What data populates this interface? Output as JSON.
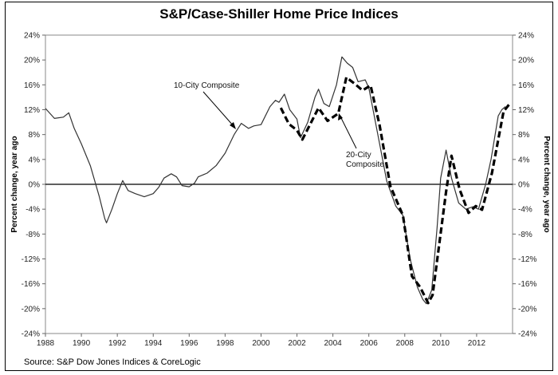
{
  "chart_data": {
    "type": "line",
    "title": "S&P/Case-Shiller Home Price Indices",
    "ylabel": "Percent change, year ago",
    "ylabel_right": "Percent change, year ago",
    "source": "Source: S&P Dow Jones Indices & CoreLogic",
    "xlim": [
      1988,
      2014
    ],
    "ylim": [
      -24,
      24
    ],
    "x_ticks": [
      "1988",
      "1990",
      "1992",
      "1994",
      "1996",
      "1998",
      "2000",
      "2002",
      "2004",
      "2006",
      "2008",
      "2010",
      "2012"
    ],
    "y_ticks": [
      "24%",
      "20%",
      "16%",
      "12%",
      "8%",
      "4%",
      "0%",
      "-4%",
      "-8%",
      "-12%",
      "-16%",
      "-20%",
      "-24%"
    ],
    "grid": false,
    "legend": "none (inline annotations)",
    "annotations": [
      {
        "text": "10-City Composite",
        "series": "10-City Composite"
      },
      {
        "text_lines": [
          "20-City",
          "Composite"
        ],
        "series": "20-City Composite"
      }
    ],
    "series": [
      {
        "name": "10-City Composite",
        "style": "solid",
        "color": "#333333",
        "x": [
          1988.0,
          1988.5,
          1989.0,
          1989.3,
          1989.6,
          1990.0,
          1990.5,
          1991.0,
          1991.3,
          1991.4,
          1991.7,
          1992.0,
          1992.3,
          1992.6,
          1993.0,
          1993.5,
          1994.0,
          1994.3,
          1994.6,
          1995.0,
          1995.3,
          1995.6,
          1996.0,
          1996.3,
          1996.5,
          1997.0,
          1997.5,
          1998.0,
          1998.5,
          1998.9,
          1999.3,
          1999.6,
          2000.0,
          2000.5,
          2000.8,
          2001.0,
          2001.3,
          2001.6,
          2002.0,
          2002.2,
          2002.6,
          2003.0,
          2003.2,
          2003.5,
          2003.8,
          2004.2,
          2004.5,
          2004.8,
          2005.1,
          2005.4,
          2005.8,
          2006.0,
          2006.5,
          2007.0,
          2007.5,
          2007.9,
          2008.3,
          2008.7,
          2009.0,
          2009.2,
          2009.5,
          2009.8,
          2010.0,
          2010.3,
          2010.6,
          2011.0,
          2011.4,
          2011.8,
          2012.1,
          2012.5,
          2012.8,
          2013.2,
          2013.4,
          2013.6
        ],
        "y": [
          12.2,
          10.6,
          10.8,
          11.5,
          9.0,
          6.5,
          3.0,
          -2.0,
          -5.5,
          -6.2,
          -4.0,
          -1.5,
          0.6,
          -1.0,
          -1.5,
          -2.0,
          -1.5,
          -0.5,
          1.0,
          1.7,
          1.2,
          -0.2,
          -0.4,
          0.2,
          1.2,
          1.8,
          3.0,
          5.0,
          8.0,
          9.8,
          9.0,
          9.4,
          9.6,
          12.5,
          13.5,
          13.2,
          14.5,
          12.0,
          10.5,
          7.5,
          10.0,
          14.0,
          15.3,
          13.0,
          12.5,
          16.0,
          20.5,
          19.5,
          18.8,
          16.5,
          16.8,
          15.5,
          8.0,
          0.5,
          -3.5,
          -5.0,
          -12.0,
          -16.5,
          -18.5,
          -19.2,
          -17.0,
          -7.0,
          1.0,
          5.5,
          1.0,
          -3.0,
          -4.0,
          -3.6,
          -4.0,
          0.0,
          4.0,
          11.0,
          12.0,
          12.5
        ]
      },
      {
        "name": "20-City Composite",
        "style": "dashed",
        "color": "#000000",
        "x": [
          2001.1,
          2001.55,
          2002.0,
          2002.3,
          2003.2,
          2003.7,
          2004.3,
          2004.75,
          2005.2,
          2005.65,
          2006.1,
          2006.6,
          2007.2,
          2007.9,
          2008.4,
          2008.85,
          2009.3,
          2009.55,
          2010.3,
          2010.6,
          2011.05,
          2011.55,
          2011.95,
          2012.3,
          2012.85,
          2013.5,
          2013.85
        ],
        "y": [
          12.3,
          9.7,
          8.7,
          7.2,
          12.3,
          10.2,
          11.4,
          17.2,
          16.2,
          15.1,
          15.9,
          9.5,
          -0.3,
          -5.0,
          -14.8,
          -16.5,
          -19.1,
          -17.8,
          -1.2,
          4.6,
          -0.8,
          -4.6,
          -3.5,
          -4.1,
          1.8,
          11.7,
          13.0
        ]
      }
    ]
  }
}
